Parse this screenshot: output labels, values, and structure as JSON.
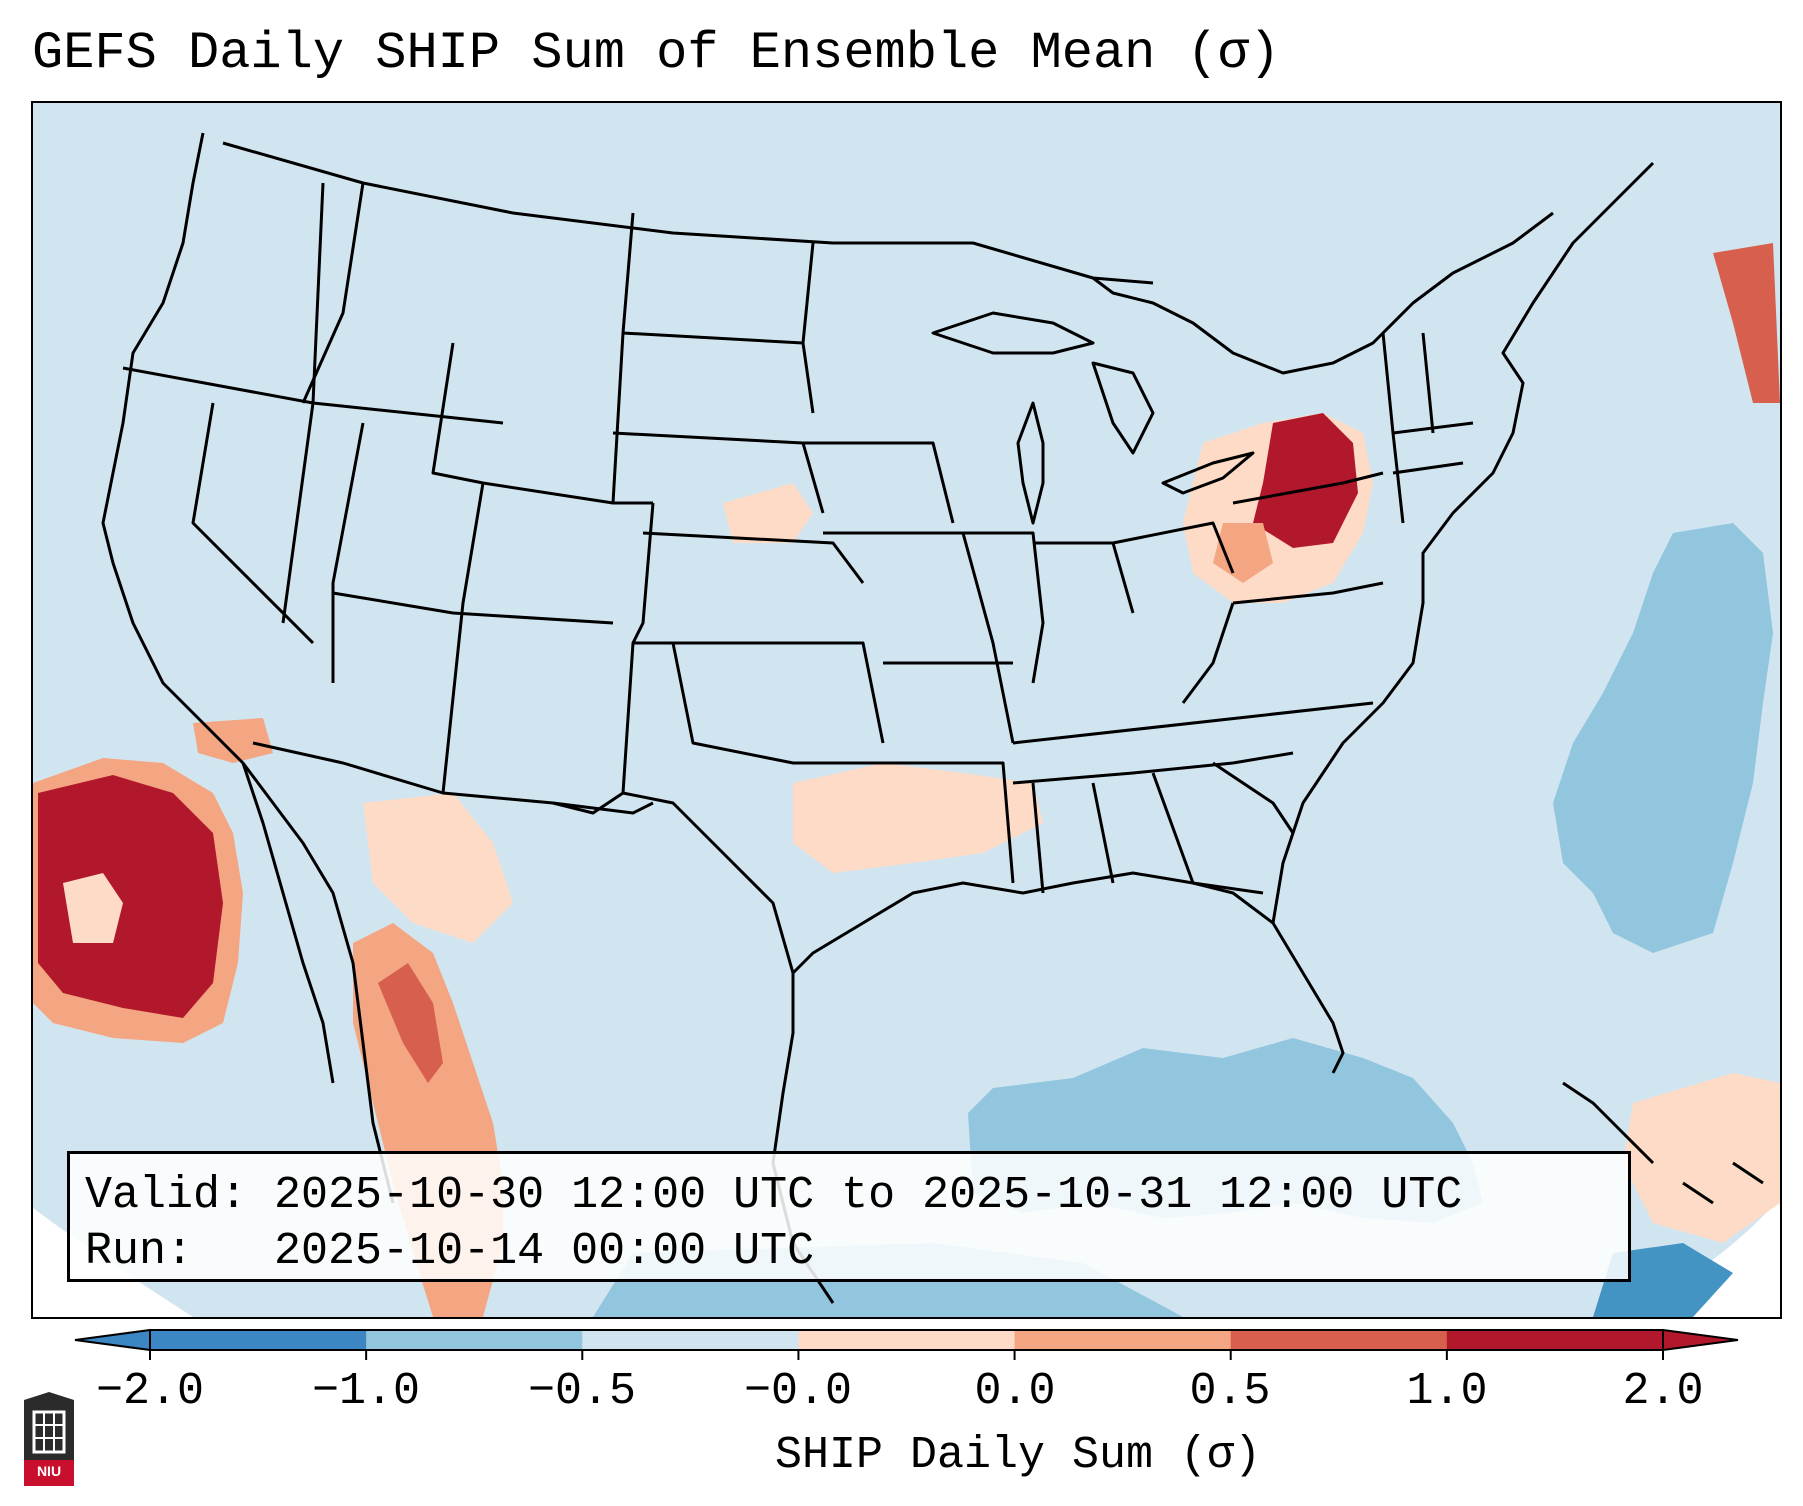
{
  "title": "GEFS Daily SHIP Sum of Ensemble Mean (σ)",
  "info": {
    "valid_label": "Valid:",
    "valid_value": "2025-10-30 12:00 UTC to 2025-10-31 12:00 UTC",
    "run_label": "Run:",
    "run_value": "2025-10-14 00:00 UTC"
  },
  "colorbar": {
    "label": "SHIP Daily Sum (σ)",
    "ticks": [
      "−2.0",
      "−1.0",
      "−0.5",
      "−0.0",
      "0.0",
      "0.5",
      "1.0",
      "2.0"
    ],
    "colors": [
      "#3b86c3",
      "#92c5de",
      "#d1e5f0",
      "#f7f7f7",
      "#fddbc7",
      "#f4a582",
      "#d6604d",
      "#b2182b"
    ],
    "extend": "both"
  },
  "map": {
    "region": "Contiguous United States",
    "background_class": "-0.5 to -0.0",
    "features": [
      "state borders",
      "coastlines",
      "country borders",
      "Great Lakes"
    ],
    "highlights": [
      {
        "area": "Pacific Ocean off southern California",
        "class": "1.0 to 2.0"
      },
      {
        "area": "New York / Pennsylvania",
        "class": "1.0 to 2.0"
      },
      {
        "area": "Gulf of Mexico",
        "class": "-1.0 to -0.5"
      },
      {
        "area": "Atlantic Ocean off the Carolinas",
        "class": "-1.0 to -0.5"
      },
      {
        "area": "Sierra Madre Occidental, Mexico",
        "class": "0.5 to 1.0"
      }
    ]
  },
  "logo": {
    "text": "NIU"
  }
}
